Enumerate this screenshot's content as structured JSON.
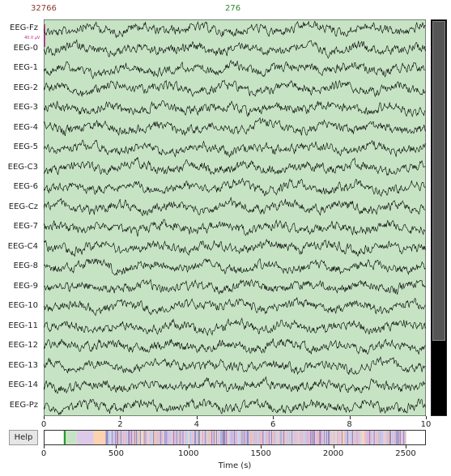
{
  "header": {
    "left_value": "32766",
    "center_value": "276"
  },
  "colors": {
    "trace_bg": "#c6e4c4",
    "trace": "#000000",
    "scale_bar": "#b0308a",
    "left_value": "#8b3a2e",
    "center_value": "#2e8b2e"
  },
  "channels": [
    "EEG-Fz",
    "EEG-0",
    "EEG-1",
    "EEG-2",
    "EEG-3",
    "EEG-4",
    "EEG-5",
    "EEG-C3",
    "EEG-6",
    "EEG-Cz",
    "EEG-7",
    "EEG-C4",
    "EEG-8",
    "EEG-9",
    "EEG-10",
    "EEG-11",
    "EEG-12",
    "EEG-13",
    "EEG-14",
    "EEG-Pz"
  ],
  "scale_label": "40.0 µV",
  "time_axis": {
    "ticks": [
      "0",
      "2",
      "4",
      "6",
      "8",
      "10"
    ],
    "range": [
      0,
      10
    ]
  },
  "help_button": {
    "label": "Help"
  },
  "overview_axis": {
    "ticks": [
      "0",
      "500",
      "1000",
      "1500",
      "2000",
      "2500"
    ],
    "range": [
      0,
      2640
    ]
  },
  "xlabel": "Time (s)",
  "scrollbar": {
    "thumb_fraction": 0.81
  }
}
